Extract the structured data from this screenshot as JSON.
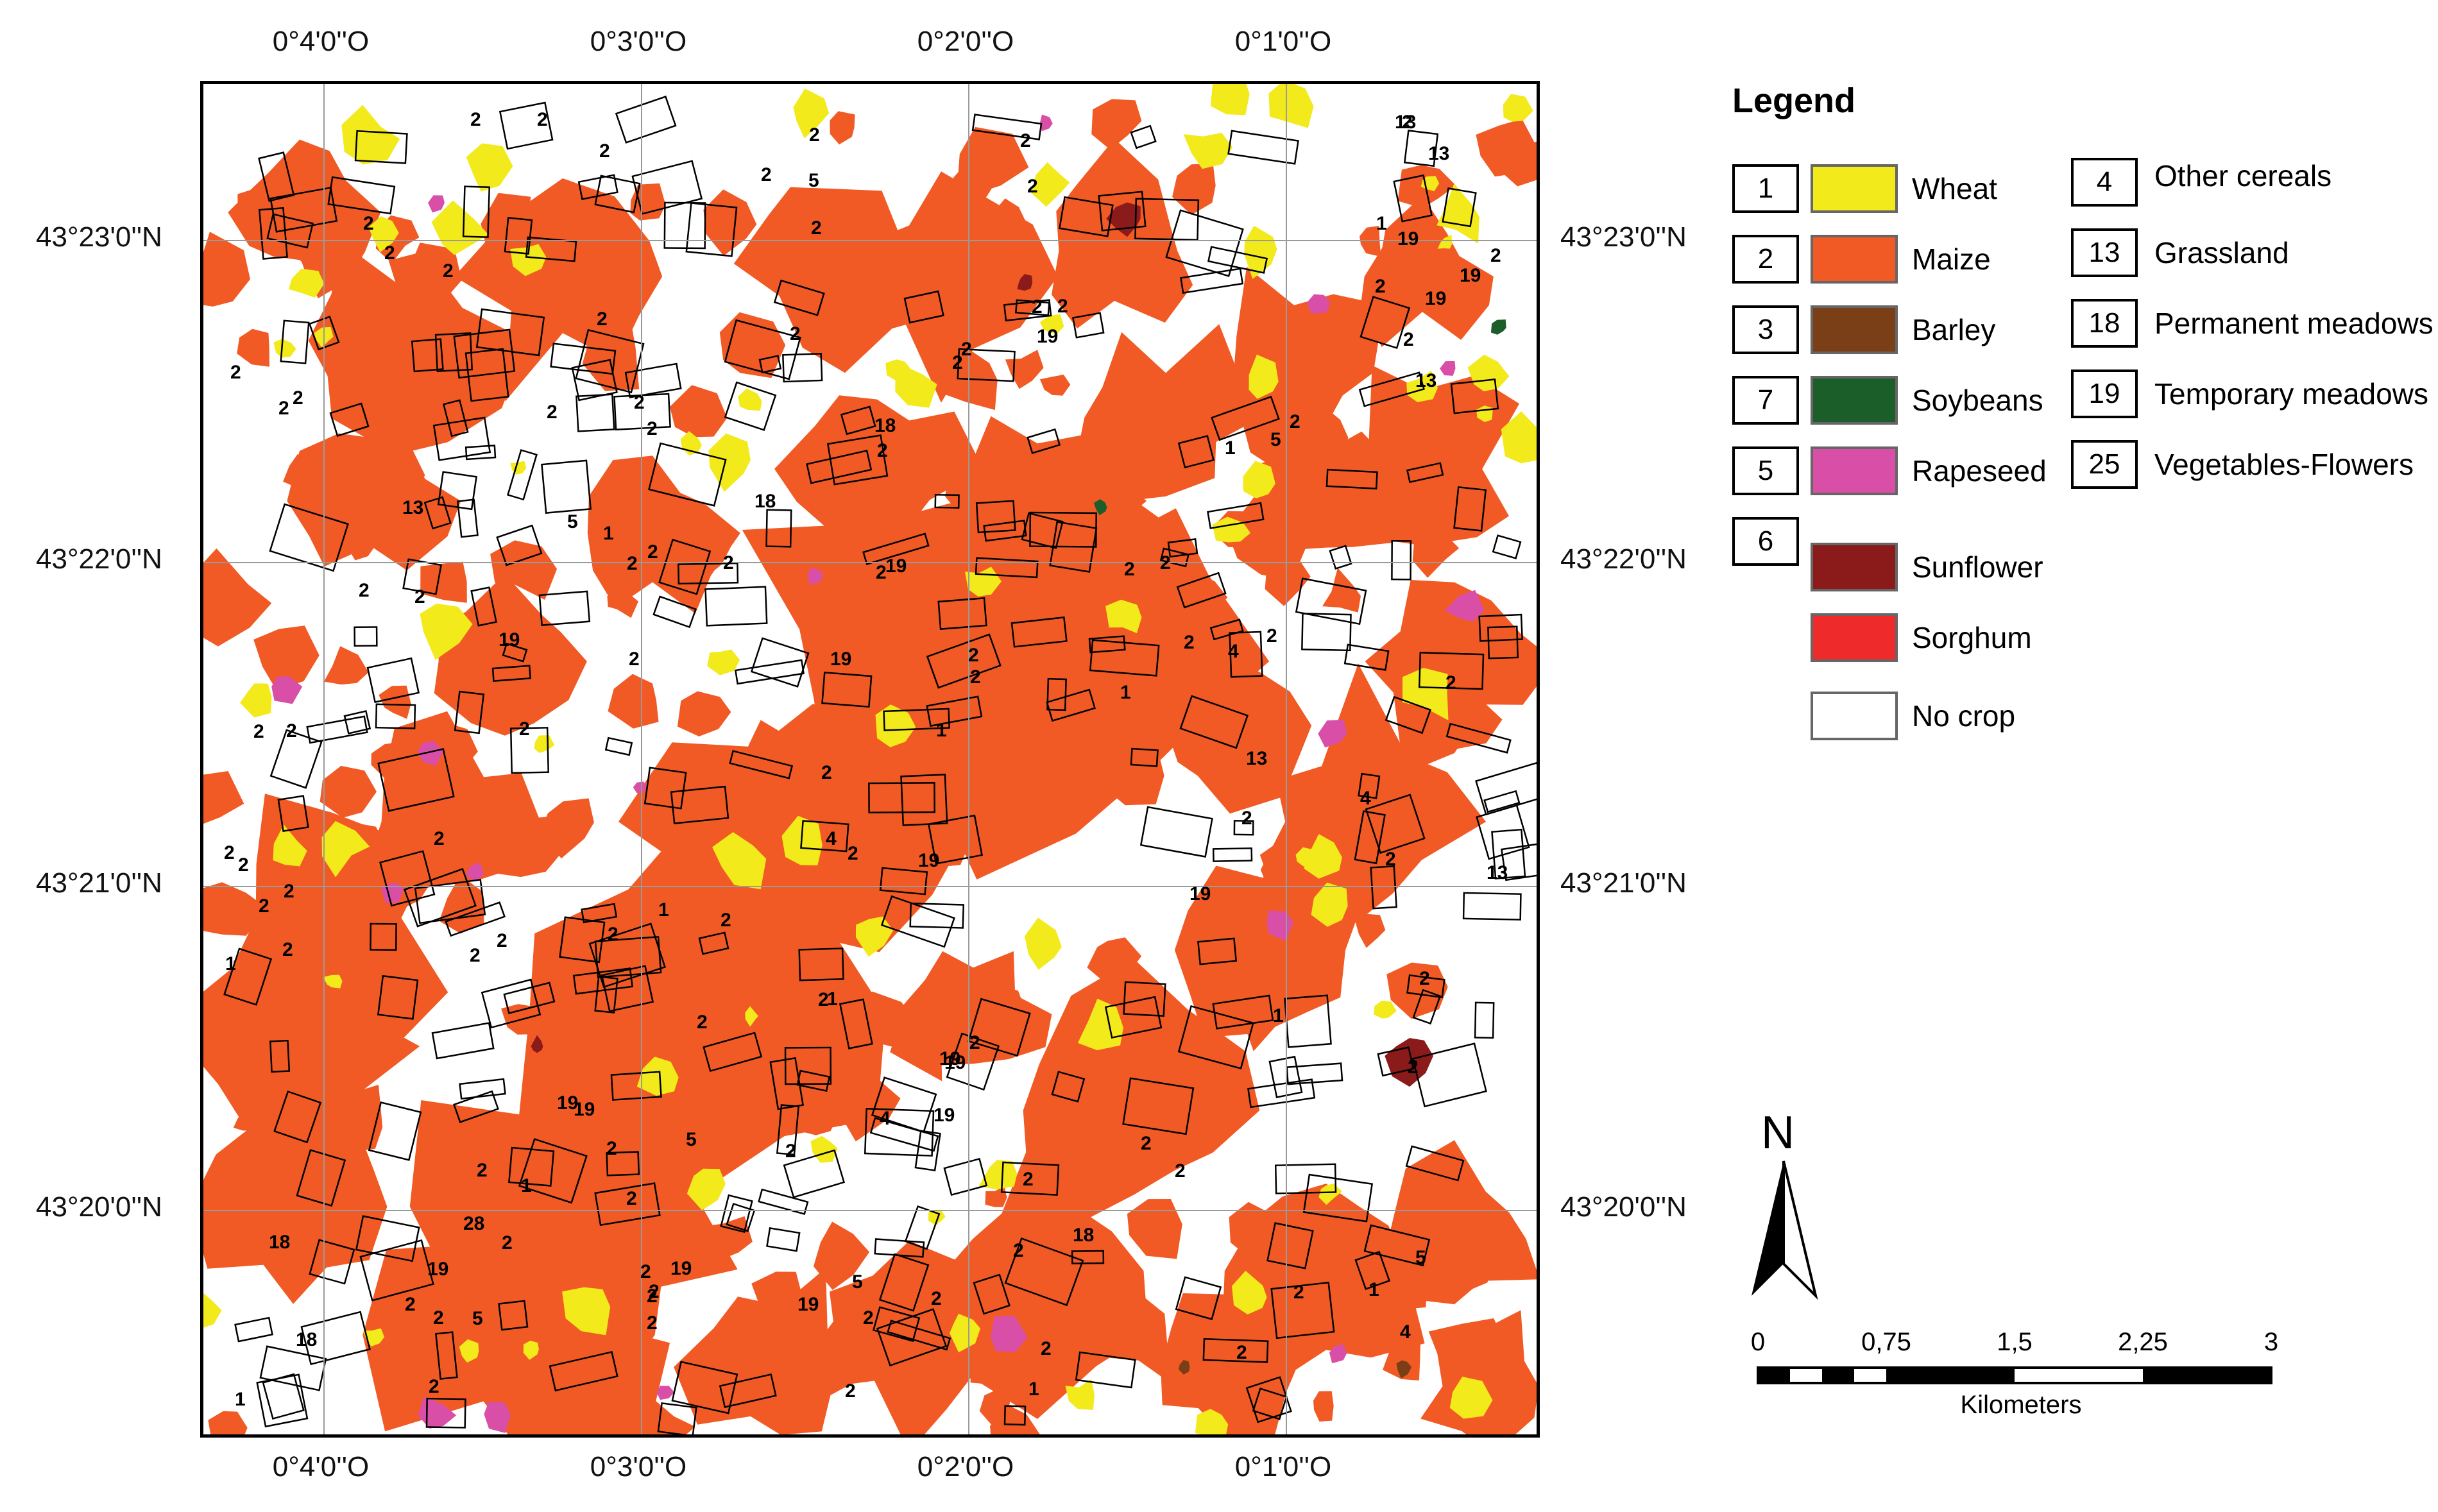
{
  "coords": {
    "top": [
      "0°4'0''O",
      "0°3'0''O",
      "0°2'0''O",
      "0°1'0''O"
    ],
    "bottom": [
      "0°4'0''O",
      "0°3'0''O",
      "0°2'0''O",
      "0°1'0''O"
    ],
    "left": [
      "43°23'0''N",
      "43°22'0''N",
      "43°21'0''N",
      "43°20'0''N"
    ],
    "right": [
      "43°23'0''N",
      "43°22'0''N",
      "43°21'0''N",
      "43°20'0''N"
    ]
  },
  "legend": {
    "title": "Legend",
    "crop_items": [
      {
        "code": "1",
        "label": "Wheat",
        "color": "#f2ea1a"
      },
      {
        "code": "2",
        "label": "Maize",
        "color": "#f15a24"
      },
      {
        "code": "3",
        "label": "Barley",
        "color": "#7b3f17"
      },
      {
        "code": "7",
        "label": "Soybeans",
        "color": "#1b5e2a"
      },
      {
        "code": "5",
        "label": "Rapeseed",
        "color": "#d94fa8"
      },
      {
        "code": "6",
        "label": "Sunflower",
        "color": "#8b1a1a"
      },
      {
        "code": "",
        "label": "Sorghum",
        "color": "#ee2a2a"
      },
      {
        "code": "",
        "label": "No crop",
        "color": "#ffffff"
      }
    ],
    "code_items": [
      {
        "code": "4",
        "label": "Other cereals"
      },
      {
        "code": "13",
        "label": "Grassland"
      },
      {
        "code": "18",
        "label": "Permanent meadows"
      },
      {
        "code": "19",
        "label": "Temporary meadows"
      },
      {
        "code": "25",
        "label": "Vegetables-Flowers"
      }
    ]
  },
  "north_arrow": {
    "letter": "N"
  },
  "scale_bar": {
    "ticks": [
      "0",
      "0,75",
      "1,5",
      "2,25",
      "3"
    ],
    "unit": "Kilometers"
  },
  "map": {
    "field_labels": [
      "2",
      "2",
      "19",
      "1",
      "5",
      "13",
      "18",
      "19",
      "2",
      "4",
      "2",
      "2",
      "19",
      "2",
      "1",
      "2",
      "5",
      "13",
      "19",
      "18",
      "2",
      "2",
      "2",
      "4",
      "1",
      "2",
      "19",
      "2",
      "2",
      "5",
      "2",
      "19",
      "2",
      "13",
      "18",
      "2",
      "2",
      "2",
      "2",
      "1",
      "19",
      "2",
      "2",
      "2",
      "2",
      "2",
      "2",
      "1",
      "28",
      "19",
      "2",
      "2",
      "2",
      "1",
      "5",
      "2",
      "19",
      "2",
      "13",
      "2",
      "2",
      "2",
      "4",
      "2",
      "19",
      "2",
      "2",
      "1",
      "2",
      "2",
      "19",
      "2",
      "2",
      "5",
      "2",
      "19",
      "13",
      "18",
      "2",
      "1",
      "2",
      "2",
      "2",
      "2",
      "2",
      "19",
      "2",
      "2",
      "1",
      "4",
      "2",
      "2",
      "2",
      "2",
      "19",
      "2",
      "18",
      "2",
      "2",
      "5",
      "1",
      "2",
      "2",
      "2",
      "2",
      "2",
      "13",
      "2",
      "2",
      "2",
      "19",
      "1",
      "2",
      "2",
      "2",
      "2",
      "2",
      "2",
      "4",
      "2",
      "2",
      "19",
      "2",
      "2",
      "1",
      "2",
      "2",
      "2",
      "2",
      "5",
      "2",
      "2",
      "19",
      "2",
      "2",
      "2",
      "2",
      "1",
      "2",
      "2",
      "2"
    ]
  }
}
